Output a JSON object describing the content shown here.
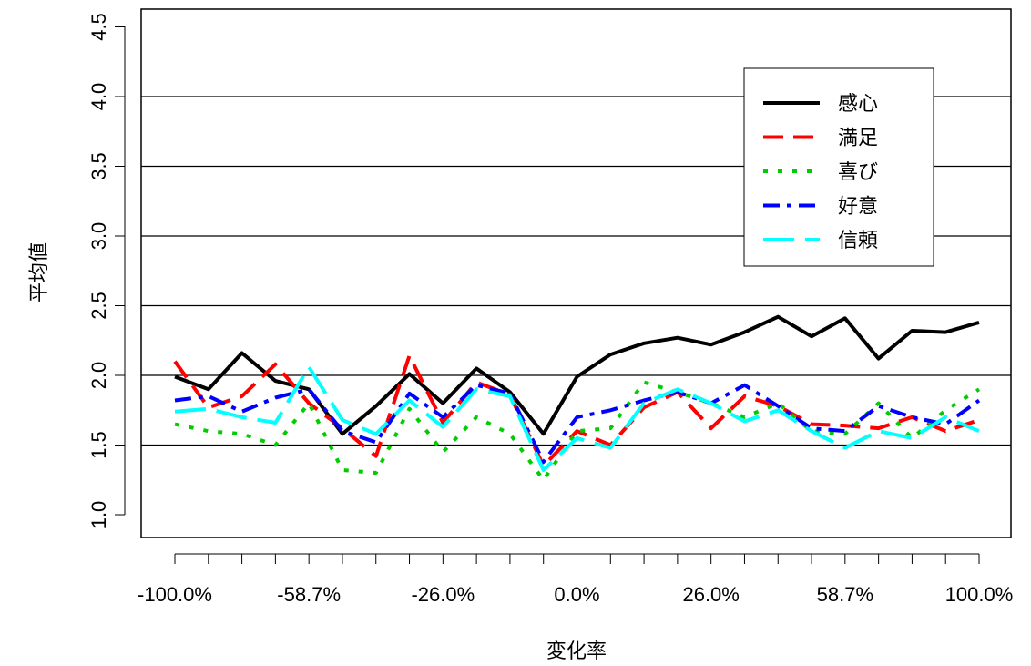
{
  "chart_data": {
    "type": "line",
    "title": "",
    "xlabel": "変化率",
    "ylabel": "平均値",
    "ylim": [
      1.0,
      4.5
    ],
    "y_ticks": [
      "1.0",
      "1.5",
      "2.0",
      "2.5",
      "3.0",
      "3.5",
      "4.0",
      "4.5"
    ],
    "x_tick_labels": [
      "-100.0%",
      "-58.7%",
      "-26.0%",
      "0.0%",
      "26.0%",
      "58.7%",
      "100.0%"
    ],
    "x_tick_count": 25,
    "grid_y_lines": [
      1.5,
      2.0,
      2.5,
      3.0,
      3.5,
      4.0
    ],
    "legend_position": "top-right",
    "series": [
      {
        "name": "感心",
        "color": "#000000",
        "dash": "solid",
        "values": [
          1.99,
          1.9,
          2.16,
          1.96,
          1.9,
          1.58,
          1.78,
          2.01,
          1.8,
          2.05,
          1.88,
          1.58,
          1.99,
          2.15,
          2.23,
          2.27,
          2.22,
          2.31,
          2.42,
          2.28,
          2.41,
          2.12,
          2.32,
          2.31,
          2.38
        ]
      },
      {
        "name": "満足",
        "color": "#ff0000",
        "dash": "dash",
        "values": [
          2.1,
          1.77,
          1.85,
          2.08,
          1.8,
          1.62,
          1.42,
          2.14,
          1.66,
          1.95,
          1.86,
          1.35,
          1.6,
          1.5,
          1.77,
          1.88,
          1.62,
          1.85,
          1.78,
          1.65,
          1.64,
          1.62,
          1.7,
          1.6,
          1.68
        ]
      },
      {
        "name": "喜び",
        "color": "#00cd00",
        "dash": "dot",
        "values": [
          1.65,
          1.6,
          1.58,
          1.5,
          1.8,
          1.32,
          1.3,
          1.76,
          1.45,
          1.7,
          1.58,
          1.25,
          1.6,
          1.62,
          1.95,
          1.88,
          1.8,
          1.7,
          1.8,
          1.6,
          1.58,
          1.8,
          1.55,
          1.75,
          1.9
        ]
      },
      {
        "name": "好意",
        "color": "#0000ff",
        "dash": "dashdot",
        "values": [
          1.82,
          1.85,
          1.74,
          1.84,
          1.9,
          1.6,
          1.52,
          1.87,
          1.7,
          1.93,
          1.87,
          1.38,
          1.7,
          1.75,
          1.82,
          1.88,
          1.8,
          1.93,
          1.78,
          1.62,
          1.6,
          1.78,
          1.7,
          1.65,
          1.82
        ]
      },
      {
        "name": "信頼",
        "color": "#00ffff",
        "dash": "longdash",
        "values": [
          1.74,
          1.76,
          1.7,
          1.66,
          2.06,
          1.68,
          1.58,
          1.82,
          1.63,
          1.9,
          1.85,
          1.32,
          1.55,
          1.48,
          1.8,
          1.9,
          1.8,
          1.67,
          1.75,
          1.6,
          1.48,
          1.6,
          1.55,
          1.7,
          1.6
        ]
      }
    ]
  }
}
